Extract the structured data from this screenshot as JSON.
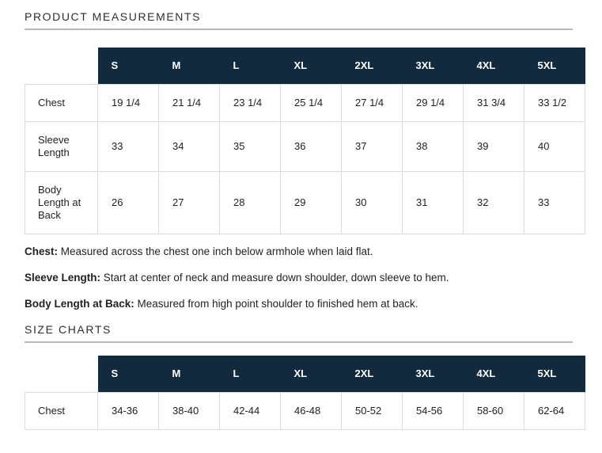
{
  "colors": {
    "header_bg": "#112a3e",
    "header_text": "#ffffff",
    "table_border": "#dcdcdc",
    "section_rule": "#b8b8b8",
    "text": "#222222"
  },
  "product_measurements": {
    "title": "PRODUCT MEASUREMENTS",
    "sizes": [
      "S",
      "M",
      "L",
      "XL",
      "2XL",
      "3XL",
      "4XL",
      "5XL"
    ],
    "rows": [
      {
        "label": "Chest",
        "values": [
          "19 1/4",
          "21 1/4",
          "23 1/4",
          "25 1/4",
          "27 1/4",
          "29 1/4",
          "31 3/4",
          "33 1/2"
        ]
      },
      {
        "label": "Sleeve Length",
        "values": [
          "33",
          "34",
          "35",
          "36",
          "37",
          "38",
          "39",
          "40"
        ]
      },
      {
        "label": "Body Length at Back",
        "values": [
          "26",
          "27",
          "28",
          "29",
          "30",
          "31",
          "32",
          "33"
        ]
      }
    ],
    "notes": [
      {
        "term": "Chest:",
        "description": "Measured across the chest one inch below armhole when laid flat."
      },
      {
        "term": "Sleeve Length:",
        "description": "Start at center of neck and measure down shoulder, down sleeve to hem."
      },
      {
        "term": "Body Length at Back:",
        "description": "Measured from high point shoulder to finished hem at back."
      }
    ]
  },
  "size_charts": {
    "title": "SIZE CHARTS",
    "sizes": [
      "S",
      "M",
      "L",
      "XL",
      "2XL",
      "3XL",
      "4XL",
      "5XL"
    ],
    "rows": [
      {
        "label": "Chest",
        "values": [
          "34-36",
          "38-40",
          "42-44",
          "46-48",
          "50-52",
          "54-56",
          "58-60",
          "62-64"
        ]
      }
    ]
  }
}
